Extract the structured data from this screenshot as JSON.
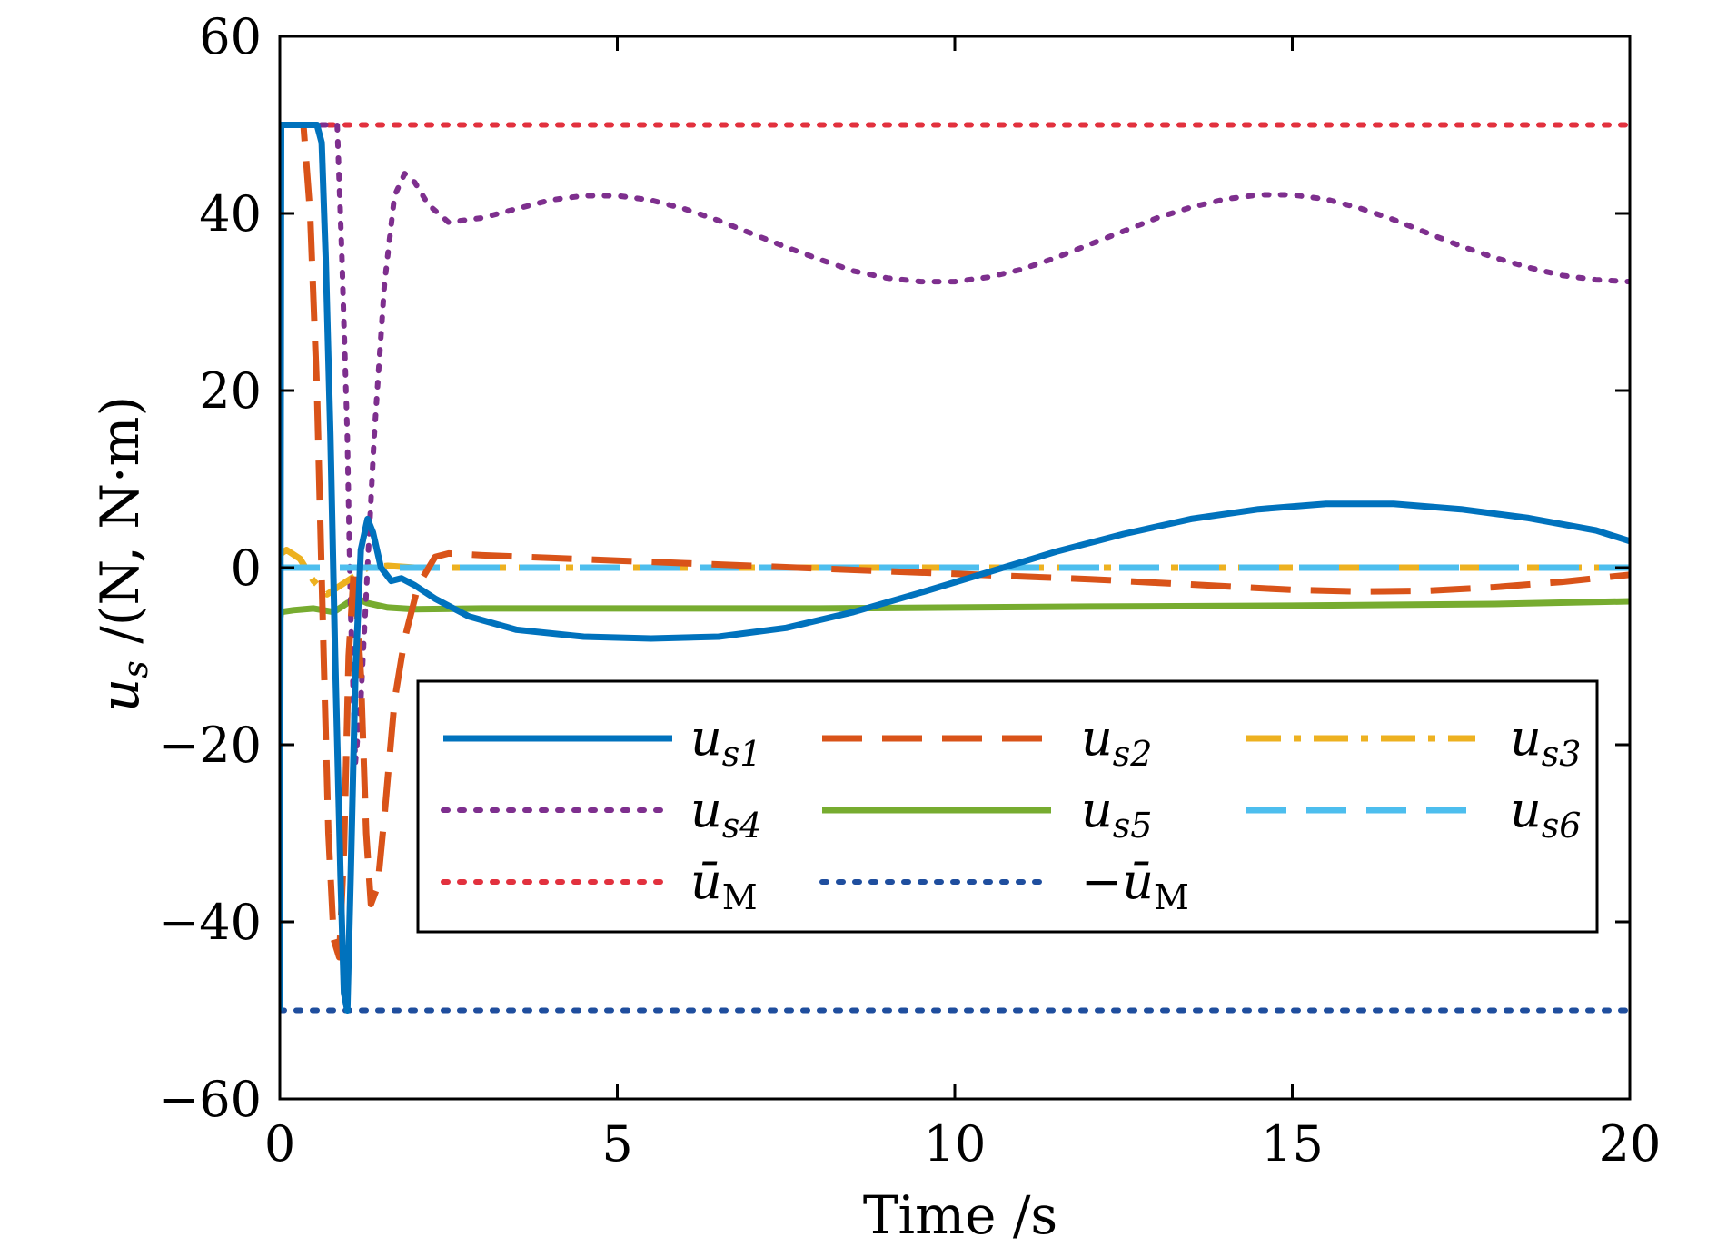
{
  "chart_data": {
    "type": "line",
    "title": "",
    "xlabel": "Time /s",
    "ylabel": "u_s /(N, N·m)",
    "xlim": [
      0,
      20
    ],
    "ylim": [
      -60,
      60
    ],
    "xticks": [
      0,
      5,
      10,
      15,
      20
    ],
    "yticks": [
      -60,
      -40,
      -20,
      0,
      20,
      40,
      60
    ],
    "xtick_labels": [
      "0",
      "5",
      "10",
      "15",
      "20"
    ],
    "ytick_labels": [
      "−60",
      "−40",
      "−20",
      "0",
      "20",
      "40",
      "60"
    ],
    "grid": false,
    "legend_placement": "lower-center",
    "series": [
      {
        "name": "us1",
        "label_main": "u",
        "label_sub": "s1",
        "color": "#0072BD",
        "style": "solid",
        "x": [
          0,
          0.02,
          0.55,
          0.62,
          0.68,
          0.75,
          0.82,
          0.9,
          0.95,
          1.0,
          1.05,
          1.12,
          1.2,
          1.3,
          1.38,
          1.5,
          1.65,
          1.8,
          2.0,
          2.3,
          2.8,
          3.5,
          4.5,
          5.5,
          6.5,
          7.5,
          8.5,
          9.5,
          10.5,
          11.5,
          12.5,
          13.5,
          14.5,
          15.5,
          16.5,
          17.5,
          18.5,
          19.5,
          20
        ],
        "y": [
          -50,
          50,
          50,
          48,
          35,
          15,
          -10,
          -35,
          -48,
          -50,
          -35,
          -12,
          2,
          5.5,
          4,
          0,
          -1.5,
          -1.2,
          -2,
          -3.5,
          -5.5,
          -7,
          -7.8,
          -8,
          -7.8,
          -6.8,
          -5,
          -2.8,
          -0.5,
          1.8,
          3.8,
          5.5,
          6.6,
          7.2,
          7.2,
          6.6,
          5.6,
          4.2,
          3
        ]
      },
      {
        "name": "us2",
        "label_main": "u",
        "label_sub": "s2",
        "color": "#D95319",
        "style": "dashed",
        "x": [
          0,
          0.02,
          0.35,
          0.45,
          0.55,
          0.65,
          0.72,
          0.8,
          0.88,
          0.95,
          1.02,
          1.1,
          1.2,
          1.28,
          1.35,
          1.45,
          1.55,
          1.7,
          1.85,
          2.05,
          2.3,
          2.5,
          3,
          4,
          5,
          6,
          7,
          8,
          9,
          10,
          11,
          12,
          13,
          14,
          15,
          16,
          17,
          18,
          19,
          20
        ],
        "y": [
          50,
          50,
          50,
          40,
          20,
          -10,
          -30,
          -42,
          -44,
          -32,
          -10,
          0,
          -12,
          -30,
          -38,
          -36,
          -28,
          -15,
          -8,
          -2,
          1.2,
          1.6,
          1.4,
          1.1,
          0.8,
          0.5,
          0.2,
          -0.1,
          -0.4,
          -0.7,
          -1.0,
          -1.3,
          -1.7,
          -2.1,
          -2.5,
          -2.7,
          -2.6,
          -2.2,
          -1.6,
          -0.8
        ]
      },
      {
        "name": "us3",
        "label_main": "u",
        "label_sub": "s3",
        "color": "#EDB120",
        "style": "dashdot",
        "x": [
          0,
          0.1,
          0.3,
          0.5,
          0.7,
          0.9,
          1.1,
          1.3,
          1.6,
          2,
          3,
          5,
          10,
          15,
          20
        ],
        "y": [
          1.5,
          2,
          1,
          -1.5,
          -3,
          -2,
          -1,
          0,
          0.2,
          0,
          0,
          0,
          0,
          0,
          0
        ]
      },
      {
        "name": "us4",
        "label_main": "u",
        "label_sub": "s4",
        "color": "#7E2F8E",
        "style": "dotted",
        "x": [
          0,
          0.02,
          0.85,
          0.92,
          1.0,
          1.05,
          1.12,
          1.2,
          1.3,
          1.4,
          1.55,
          1.7,
          1.85,
          2.0,
          2.2,
          2.5,
          3.0,
          3.5,
          4.0,
          4.5,
          5.0,
          5.5,
          6.0,
          6.5,
          7.0,
          7.5,
          8.0,
          8.5,
          9.0,
          9.5,
          10.0,
          10.5,
          11.0,
          11.5,
          12.0,
          12.5,
          13.0,
          13.5,
          14.0,
          14.5,
          15.0,
          15.5,
          16.0,
          16.5,
          17.0,
          17.5,
          18.0,
          18.5,
          19.0,
          19.5,
          20.0
        ],
        "y": [
          25,
          50,
          50,
          35,
          15,
          -5,
          -22,
          -15,
          0,
          15,
          32,
          42,
          44.5,
          43.5,
          41,
          39,
          39.5,
          40.5,
          41.5,
          42,
          42,
          41.5,
          40.5,
          39.2,
          37.7,
          36.2,
          34.8,
          33.5,
          32.7,
          32.3,
          32.3,
          32.8,
          33.7,
          35,
          36.5,
          38,
          39.5,
          40.7,
          41.6,
          42.1,
          42.1,
          41.6,
          40.6,
          39.3,
          37.8,
          36.3,
          35,
          33.9,
          33,
          32.5,
          32.3
        ]
      },
      {
        "name": "us5",
        "label_main": "u",
        "label_sub": "s5",
        "color": "#77AC30",
        "style": "solid",
        "x": [
          0,
          0.02,
          0.2,
          0.5,
          0.8,
          1.0,
          1.15,
          1.3,
          1.6,
          2,
          3,
          5,
          8,
          10,
          12,
          15,
          18,
          20
        ],
        "y": [
          -6,
          -5,
          -4.8,
          -4.6,
          -5,
          -4,
          -3.5,
          -4,
          -4.5,
          -4.7,
          -4.6,
          -4.6,
          -4.6,
          -4.5,
          -4.4,
          -4.3,
          -4.1,
          -3.8
        ]
      },
      {
        "name": "us6",
        "label_main": "u",
        "label_sub": "s6",
        "color": "#4DBEEE",
        "style": "dashed",
        "x": [
          0,
          20
        ],
        "y": [
          0,
          0
        ]
      },
      {
        "name": "u_M",
        "label_main": "ū",
        "label_sub": "M",
        "label_prefix": "",
        "color": "#E2313E",
        "style": "dotted",
        "x": [
          0,
          20
        ],
        "y": [
          50,
          50
        ]
      },
      {
        "name": "-u_M",
        "label_main": "ū",
        "label_sub": "M",
        "label_prefix": "−",
        "color": "#1F4E9E",
        "style": "dotted",
        "x": [
          0,
          20
        ],
        "y": [
          -50,
          -50
        ]
      }
    ]
  }
}
